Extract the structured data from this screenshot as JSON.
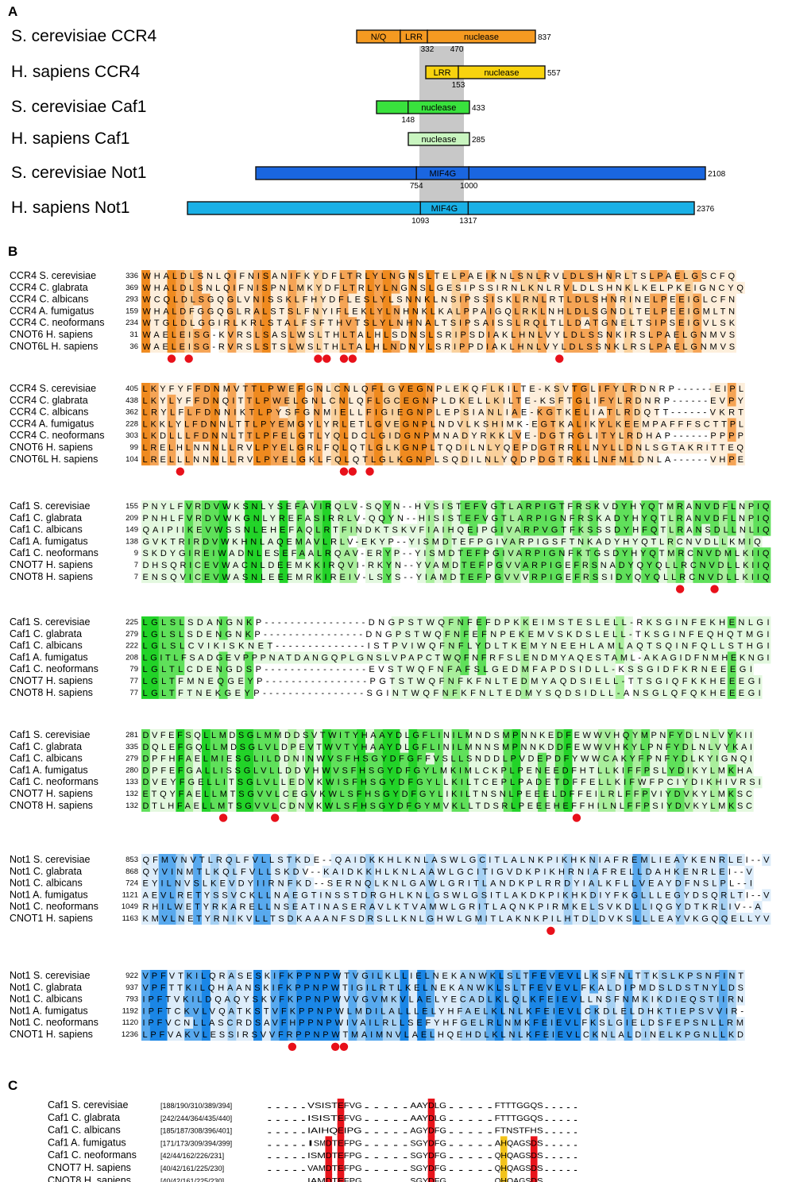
{
  "panel_a": {
    "letter": "A",
    "proteins": [
      {
        "name": "S. cerevisiae CCR4",
        "length": "837",
        "color": "#f59a21",
        "segments": [
          {
            "label": "N/Q",
            "start": 1,
            "end": 205
          },
          {
            "label": "LRR",
            "start": 205,
            "end": 332
          },
          {
            "label": "nuclease",
            "start": 332,
            "end": 837
          }
        ],
        "ticks": [
          "332",
          "470"
        ]
      },
      {
        "name": "H. sapiens CCR4",
        "length": "557",
        "color": "#f8d30e",
        "segments": [
          {
            "label": "LRR",
            "start": 1,
            "end": 153
          },
          {
            "label": "nuclease",
            "start": 153,
            "end": 557
          }
        ],
        "ticks": [
          "153"
        ]
      },
      {
        "name": "S. cerevisiae Caf1",
        "length": "433",
        "color": "#39e23d",
        "segments": [
          {
            "label": "",
            "start": 1,
            "end": 148
          },
          {
            "label": "nuclease",
            "start": 148,
            "end": 433
          }
        ],
        "ticks": [
          "148"
        ]
      },
      {
        "name": "H. sapiens Caf1",
        "length": "285",
        "color": "#c9f5c0",
        "segments": [
          {
            "label": "nuclease",
            "start": 1,
            "end": 285
          }
        ],
        "ticks": []
      },
      {
        "name": "S. cerevisiae Not1",
        "length": "2108",
        "color": "#1a66e0",
        "segments": [
          {
            "label": "",
            "start": 1,
            "end": 754
          },
          {
            "label": "MIF4G",
            "start": 754,
            "end": 1000
          },
          {
            "label": "",
            "start": 1000,
            "end": 2108
          }
        ],
        "ticks": [
          "754",
          "1000"
        ]
      },
      {
        "name": "H. sapiens Not1",
        "length": "2376",
        "color": "#1ab0e6",
        "segments": [
          {
            "label": "",
            "start": 1,
            "end": 1093
          },
          {
            "label": "MIF4G",
            "start": 1093,
            "end": 1317
          },
          {
            "label": "",
            "start": 1317,
            "end": 2376
          }
        ],
        "ticks": [
          "1093",
          "1317"
        ]
      }
    ]
  },
  "panel_b": {
    "letter": "B",
    "blocks": [
      {
        "palette": "orange",
        "rows": [
          {
            "name": "CCR4 S. cerevisiae",
            "start": "336",
            "seq": "WHALDLSNLQIFNISANIFKYDFLTRLYLNGNSLTELPAEIKNLSNLRVLDLSHNRLTSLPAELGSCFQ"
          },
          {
            "name": "CCR4 C. glabrata",
            "start": "369",
            "seq": "WHALDLSNLQIFNISPNLMKYDFLTRLYLNGNSLGESIPSSIRNLKNLRVLDLSHNKLKELPKEIGNCYQ"
          },
          {
            "name": "CCR4 C. albicans",
            "start": "293",
            "seq": "WCQLDLSGQGLVNISSKLFHYDFLESLYLSNNKLNSIPSSISKLRNLRTLDLSHNRINELPEEIGLCFN"
          },
          {
            "name": "CCR4 A. fumigatus",
            "start": "159",
            "seq": "WHALDFGGQGLRALSTSLFNYIFLEKLYLNHNKLKALPPAIGQLRKLNHLDLSGNDLTELPEEIGMLTN"
          },
          {
            "name": "CCR4 C. neoformans",
            "start": "234",
            "seq": "WTGLDLGGIRLKRLSTALFSFTHVTSLYLNHNALTSIPSAISSLRQLTLLDATGNELTSIPSEIGVLSK"
          },
          {
            "name": "CNOT6 H. sapiens",
            "start": "31",
            "seq": "WAELEISG-KVRSLSASLWSLTHLTALHLSDNSLSRIPSDIAKLHNLVYLDLSSNKIRSLPAELGNMVS"
          },
          {
            "name": "CNOT6L H. sapiens",
            "start": "36",
            "seq": "WAELEISG-RVRSLSTSLWSLTHLTALHLNDNYLSRIPPDIAKLHNLVYLDLSSNKLRSLPAELGNMVS"
          }
        ],
        "dots": [
          3,
          5,
          20,
          21,
          23,
          24,
          48
        ]
      },
      {
        "palette": "orange",
        "rows": [
          {
            "name": "CCR4 S. cerevisiae",
            "start": "405",
            "seq": "LKYFYFFDNMVTTLPWEFGNLCNLQFLGVEGNPLEKQFLKILTE-KSVTGLIFYLRDNRP------EIPL"
          },
          {
            "name": "CCR4 C. glabrata",
            "start": "438",
            "seq": "LKYLYFFDNQITTLPWELGNLCNLQFLGCEGNPLDKELLKILTE-KSFTGLIFYLRDNRP------EVPY"
          },
          {
            "name": "CCR4 C. albicans",
            "start": "362",
            "seq": "LRYLFLFDNNIKTLPYSFGNMIELLFIGIEGNPLEPSIANLIAE-KGTKELIATLRDQTT------VKRT"
          },
          {
            "name": "CCR4 A. fumigatus",
            "start": "228",
            "seq": "LKKLYLFDNNLTTLPYEMGYLYRLETLGVEGNPLNDVLKSHIMK-EGTKALIKYLKEEMPAFFFSCTTPL"
          },
          {
            "name": "CCR4 C. neoformans",
            "start": "303",
            "seq": "LKDLLLFDNNLTTLPFELGTLYQLDCLGIDGNPMNADYRKKLVE-DGTRGLITYLRDHAP------PPPP"
          },
          {
            "name": "CNOT6 H. sapiens",
            "start": "99",
            "seq": "LRELHLNNNLLRVLPYELGRLFQLQTLGLKGNPLTQDILNLYQEPDGTRRLLNYLLDNLSGTAKRITTEQ"
          },
          {
            "name": "CNOT6L H. sapiens",
            "start": "104",
            "seq": "LRELLLNNNLLRVLPYELGKLFQLQTLGLKGNPLSQDILNLYQDPDGTRKLLNFMLDNLA------VHPE"
          }
        ],
        "dots": [
          4,
          23,
          24,
          26
        ]
      },
      {
        "palette": "green",
        "rows": [
          {
            "name": "Caf1 S. cerevisiae",
            "start": "155",
            "seq": "PNYLFVRDVWKSNLYSEFAVIRQLV-SQYN--HVSISTEFVGTLARPIGTFRSKVDYHYQTMRANVDFLNPIQ"
          },
          {
            "name": "Caf1 C. glabrata",
            "start": "209",
            "seq": "PNHLFVRDVWKGNLYREFASIRRLV-QQYN--HISISTEFVGTLARPIGNFRSKADYHYQTLRANVDFLNPIQ"
          },
          {
            "name": "Caf1 C. albicans",
            "start": "149",
            "seq": "QAIPIIKEVWSSNLEHEFAQLRTFINDKTSKVFIAIHQEIPGIVARPVGTFKSSSDYHFQTLRANSDLLNLIQ"
          },
          {
            "name": "Caf1 A. fumigatus",
            "start": "138",
            "seq": "GVKTRIRDVWKHNLAQEMAVLRLV-EKYP--YISMDTEFPGIVARPIGSFTNKADYHYQTLRCNVDLLKMIQ"
          },
          {
            "name": "Caf1 C. neoformans",
            "start": "9",
            "seq": "SKDYGIREIWADNLESEFAALRQAV-ERYP--YISMDTEFPGIVARPIGNFKTGSDYHYQTMRCNVDMLKIIQ"
          },
          {
            "name": "CNOT7 H. sapiens",
            "start": "7",
            "seq": "DHSQRICEVWACNLDEEMKKIRQVI-RKYN--YVAMDTEFPGVVARPIGEFRSNADYQYQLLRCNVDLLKIIQ"
          },
          {
            "name": "CNOT8 H. sapiens",
            "start": "7",
            "seq": "ENSQVICEVWASNLEEEMRKIREIV-LSYS--YIAMDTEFPGVVVRPIGEFRSSIDYQYQLLRCNVDLLKIIQ"
          }
        ],
        "dots": [
          62,
          66
        ]
      },
      {
        "palette": "green",
        "rows": [
          {
            "name": "Caf1 S. cerevisiae",
            "start": "225",
            "seq": "LGLSLSDANGNKP----------------DNGPSTWQFNFEFDPKKEIMSTESLELL-RKSGINFEKHENLGI"
          },
          {
            "name": "Caf1 C. glabrata",
            "start": "279",
            "seq": "LGLSLSDENGNKP----------------DNGPSTWQFNFEFNPEKEMVSKDSLELL-TKSGINFEQHQTMGI"
          },
          {
            "name": "Caf1 C. albicans",
            "start": "222",
            "seq": "LGLSLCVIKISKNET--------------ISTPVIWQFNFLYDLTKEMYNEEHLAMLAQTSQINFQLLSTHGI"
          },
          {
            "name": "Caf1 A. fumigatus",
            "start": "208",
            "seq": "LGITLFSADGEVPPPNATDANGQPLGNSLVPAPCTWQFNFRFSLENDMYAQESTAML-AKAGIDFNMHEKNGI"
          },
          {
            "name": "Caf1 C. neoformans",
            "start": "79",
            "seq": "LGLTLCDENGDSP----------------EVSTWQFNFAFSLGEDMFAPDSIDLL-KSSGIDFKRNEEEGI"
          },
          {
            "name": "CNOT7 H. sapiens",
            "start": "77",
            "seq": "LGLTFMNEQGEYP----------------PGTSTWQFNFKFNLTEDMYAQDSIELL-TTSGIQFKKHEEEGI"
          },
          {
            "name": "CNOT8 H. sapiens",
            "start": "77",
            "seq": "LGLTFTNEKGEYP----------------SGINTWQFNFKFNLTEDMYSQDSIDLL-ANSGLQFQKHEEEGI"
          }
        ],
        "dots": []
      },
      {
        "palette": "green",
        "rows": [
          {
            "name": "Caf1 S. cerevisiae",
            "start": "281",
            "seq": "DVFEFSQLLMDSGLMMDDSVTWITYHAAYDLGFLINILMNDSMPNNKEDFEWWVHQYMPNFYDLNLVYKII"
          },
          {
            "name": "Caf1 C. glabrata",
            "start": "335",
            "seq": "DQLEFGQLLMDSGLVLDPEVTWVTYHAAYDLGFLINILMNNSMPNNKDDFEWWVHKYLPNFYDLNLVYKAI"
          },
          {
            "name": "Caf1 C. albicans",
            "start": "279",
            "seq": "DPFHFAELMIESGLILDDNINWVSFHSGYDFGFFVSLLSNDDLPVDEPDFYWWCAKYFPNFYDLKYIGNQI"
          },
          {
            "name": "Caf1 A. fumigatus",
            "start": "280",
            "seq": "DPFEFGALLISSGLVLLDDVHWVSFHSGYDFGYLMKIMLCKPLPENEEDFHTLLKIFFPSLYDIKYLMKHA"
          },
          {
            "name": "Caf1 C. neoformans",
            "start": "133",
            "seq": "DVEYFGELLITSGLVLLEDVKWISFHSGYDFGYLLKILTCEPLPADETDFFELLKIFWFPCIYDIKHIVRSI"
          },
          {
            "name": "CNOT7 H. sapiens",
            "start": "132",
            "seq": "ETQYFAELLMTSGVVLCEGVKWLSFHSGYDFGYLIKILTNSNLPEEELDFFEILRLFFPVIYDVKYLMKSC"
          },
          {
            "name": "CNOT8 H. sapiens",
            "start": "132",
            "seq": "DTLHFAELLMTSGVVLCDNVKWLSFHSGYDFGYMVKLLTDSRLPEEEHEFFHILNLFFPSIYDVKYLMKSC"
          }
        ],
        "dots": [
          9,
          15,
          50
        ]
      },
      {
        "palette": "blue",
        "rows": [
          {
            "name": "Not1 S. cerevisiae",
            "start": "853",
            "seq": "QFMVNVTLRQLFVLLSTKDE--QAIDKKHLKNLASWLGCITLALNKPIKHKNIAFREMLIEAYKENRLEI--V"
          },
          {
            "name": "Not1 C. glabrata",
            "start": "868",
            "seq": "QYVINMTLKQLFVLLSKDV--KAIDKKHLKNLAAWLGCITIGVDKPIKHRNIAFRELLDAHKENRLEI--V"
          },
          {
            "name": "Not1 C. albicans",
            "start": "724",
            "seq": "EYILNVSLKEVDYIIRNFKD--SERNQLKNLGAWLGRITLANDKPLRRDYIALKFLLVEAYDFNSLPL--I"
          },
          {
            "name": "Not1 A. fumigatus",
            "start": "1121",
            "seq": "AEVLRETYSSVCKLLNAEGTINSSTDRGHLKNLGSWLGSITLAKDKPIKHKDIYFKGLLLEGYDSQRLTI--V"
          },
          {
            "name": "Not1 C. neoformans",
            "start": "1049",
            "seq": "RHILWETYRKARELLNSEATINASERAVLKTVAMWLGRITLAQNKPIRMKELSVKDLLIQGYDTKRLIV--A"
          },
          {
            "name": "CNOT1 H. sapiens",
            "start": "1163",
            "seq": "KMVLNETYRNIKVLLTSDKAAANFSDRSLLKNLGHWLGMITLAKNKPILHTDLDVKSLLLEAYVKGQQELLYV"
          }
        ],
        "dots": [
          47
        ]
      },
      {
        "palette": "blue",
        "rows": [
          {
            "name": "Not1 S. cerevisiae",
            "start": "922",
            "seq": "VPFVTKILQRASESKIFKPPNPWTVGILKLLIELNEKANWKLSLTFEVEVLLKSFNLTTKSLKPSNFINT"
          },
          {
            "name": "Not1 C. glabrata",
            "start": "937",
            "seq": "VPFTTKILQHAANSKIFKPPNPWTIGILRTLKELNEKANWKLSLTFEVEVLFKALDIPMDSLDSTNYLDS"
          },
          {
            "name": "Not1 C. albicans",
            "start": "793",
            "seq": "IPFTVKILDQAQYSKVFKPPNPWVVGVMKVLAELYECADLKLQLKFEIEVLLNSFNMKIKDIEQSTIIRN"
          },
          {
            "name": "Not1 A. fumigatus",
            "start": "1192",
            "seq": "IPFTCKVLVQATKSTVFKPPNPWLMDILALLLELYHFAELKLNLKFEIEVLCKDLELDHKTIEPSVVIR-"
          },
          {
            "name": "Not1 C. neoformans",
            "start": "1120",
            "seq": "IPFVCNLLASCRDSAVFHPPNPWIVAILRLLSEFYHFGELRLNMKFEIEVLFKSLGIELDSFEPSNLLRM"
          },
          {
            "name": "CNOT1 H. sapiens",
            "start": "1236",
            "seq": "LPFVAKVLESSIRSVVFRPPNPWTMAIMNVLAELHQEHDLKLNLKFEIEVLCKNLALDINELKPGNLLKD"
          }
        ],
        "dots": [
          17,
          22,
          23
        ]
      }
    ]
  },
  "panel_c": {
    "letter": "C",
    "rows": [
      {
        "name": "Caf1 S. cerevisiae",
        "range": "[188/190/310/389/394]",
        "segs": [
          {
            "t": ".....  "
          },
          {
            "t": "VSIST"
          },
          {
            "t": "E",
            "h": "red"
          },
          {
            "t": "FVG"
          },
          {
            "t": " .....  "
          },
          {
            "t": "AAY"
          },
          {
            "t": "D",
            "h": "red"
          },
          {
            "t": "LG"
          },
          {
            "t": " .....  "
          },
          {
            "t": "FTTTGGQS"
          },
          {
            "t": " ....."
          }
        ]
      },
      {
        "name": "Caf1 C. glabrata",
        "range": "[242/244/364/435/440]",
        "segs": [
          {
            "t": ".....  "
          },
          {
            "t": "ISIST"
          },
          {
            "t": "E",
            "h": "red"
          },
          {
            "t": "FVG"
          },
          {
            "t": " .....  "
          },
          {
            "t": "AAY"
          },
          {
            "t": "D",
            "h": "red"
          },
          {
            "t": "LG"
          },
          {
            "t": " .....  "
          },
          {
            "t": "FTTTGGQS"
          },
          {
            "t": " ....."
          }
        ]
      },
      {
        "name": "Caf1 C. albicans",
        "range": "[185/187/308/396/401]",
        "segs": [
          {
            "t": ".....  "
          },
          {
            "t": "IAIHQ"
          },
          {
            "t": "E",
            "h": "red"
          },
          {
            "t": "IPG"
          },
          {
            "t": " .....  "
          },
          {
            "t": "AGY"
          },
          {
            "t": "D",
            "h": "red"
          },
          {
            "t": "FG"
          },
          {
            "t": " .....  "
          },
          {
            "t": "FTNSTFHS"
          },
          {
            "t": " ....."
          }
        ]
      },
      {
        "name": "Caf1 A. fumigatus",
        "range": "[171/173/309/394/399]",
        "segs": [
          {
            "t": ".....  "
          },
          {
            "t": "I"
          },
          {
            "t": "S"
          },
          {
            "t": "M"
          },
          {
            "t": "D",
            "h": "red"
          },
          {
            "t": "T"
          },
          {
            "t": "E",
            "h": "red"
          },
          {
            "t": "FPG"
          },
          {
            "t": " .....  "
          },
          {
            "t": "SGY"
          },
          {
            "t": "D",
            "h": "red"
          },
          {
            "t": "FG"
          },
          {
            "t": " .....  "
          },
          {
            "t": "A"
          },
          {
            "t": "H",
            "h": "yellow"
          },
          {
            "t": "QAGS"
          },
          {
            "t": "D",
            "h": "red"
          },
          {
            "t": "S"
          },
          {
            "t": " ....."
          }
        ]
      },
      {
        "name": "Caf1 C. neoformans",
        "range": "[42/44/162/226/231]",
        "segs": [
          {
            "t": ".....  "
          },
          {
            "t": "ISM"
          },
          {
            "t": "D",
            "h": "red"
          },
          {
            "t": "T"
          },
          {
            "t": "E",
            "h": "red"
          },
          {
            "t": "FPG"
          },
          {
            "t": " .....  "
          },
          {
            "t": "SGY"
          },
          {
            "t": "D",
            "h": "red"
          },
          {
            "t": "FG"
          },
          {
            "t": " .....  "
          },
          {
            "t": "Q"
          },
          {
            "t": "H",
            "h": "yellow"
          },
          {
            "t": "QAGS"
          },
          {
            "t": "D",
            "h": "red"
          },
          {
            "t": "S"
          },
          {
            "t": " ....."
          }
        ]
      },
      {
        "name": "CNOT7 H. sapiens",
        "range": "[40/42/161/225/230]",
        "segs": [
          {
            "t": ".....  "
          },
          {
            "t": "VAM"
          },
          {
            "t": "D",
            "h": "red"
          },
          {
            "t": "T"
          },
          {
            "t": "E",
            "h": "red"
          },
          {
            "t": "FPG"
          },
          {
            "t": " .....  "
          },
          {
            "t": "SGY"
          },
          {
            "t": "D",
            "h": "red"
          },
          {
            "t": "FG"
          },
          {
            "t": " .....  "
          },
          {
            "t": "Q"
          },
          {
            "t": "H",
            "h": "yellow"
          },
          {
            "t": "QAGS"
          },
          {
            "t": "D",
            "h": "red"
          },
          {
            "t": "S"
          },
          {
            "t": " ....."
          }
        ]
      },
      {
        "name": "CNOT8 H. sapiens",
        "range": "[40/42/161/225/230]",
        "segs": [
          {
            "t": ".....  "
          },
          {
            "t": "IAM"
          },
          {
            "t": "D",
            "h": "red"
          },
          {
            "t": "T"
          },
          {
            "t": "E",
            "h": "red"
          },
          {
            "t": "FPG"
          },
          {
            "t": " .....  "
          },
          {
            "t": "SGY"
          },
          {
            "t": "D",
            "h": "red"
          },
          {
            "t": "FG"
          },
          {
            "t": " .....  "
          },
          {
            "t": "Q"
          },
          {
            "t": "H",
            "h": "yellow"
          },
          {
            "t": "QAGS"
          },
          {
            "t": "D",
            "h": "red"
          },
          {
            "t": "S"
          },
          {
            "t": " ....."
          }
        ]
      }
    ]
  }
}
